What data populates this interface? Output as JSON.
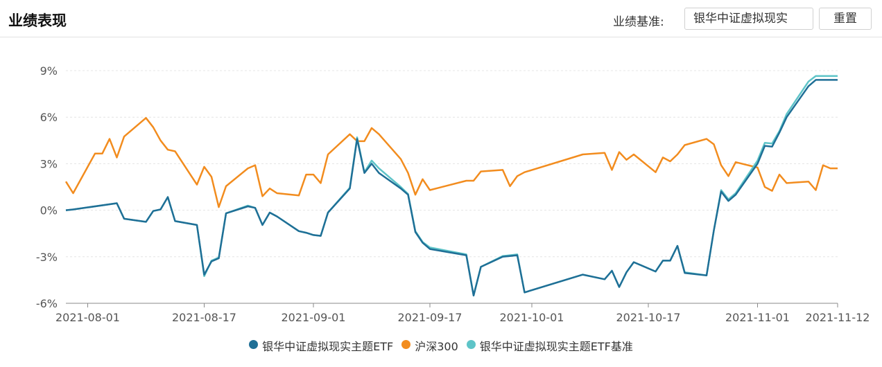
{
  "header": {
    "title": "业绩表现",
    "benchmark_label": "业绩基准:",
    "benchmark_selected": "银华中证虚拟现实",
    "reset_label": "重置"
  },
  "chart_data": {
    "type": "line",
    "title": "",
    "xlabel": "",
    "ylabel": "",
    "x_ticks": [
      "2021-08-01",
      "2021-08-17",
      "2021-09-01",
      "2021-09-17",
      "2021-10-01",
      "2021-10-17",
      "2021-11-01",
      "2021-11-12"
    ],
    "y_ticks": [
      "9%",
      "6%",
      "3%",
      "0%",
      "-3%",
      "-6%"
    ],
    "y_tick_values": [
      9,
      6,
      3,
      0,
      -3,
      -6
    ],
    "ylim": [
      -6,
      9
    ],
    "xlim": [
      "2021-07-29",
      "2021-11-12"
    ],
    "grid": "horizontal-dashed",
    "legend_position": "bottom",
    "series": [
      {
        "name": "银华中证虚拟现实主题ETF",
        "color": "#1f6f96",
        "x": [
          "2021-07-29",
          "2021-07-30",
          "2021-08-05",
          "2021-08-06",
          "2021-08-09",
          "2021-08-10",
          "2021-08-11",
          "2021-08-12",
          "2021-08-13",
          "2021-08-16",
          "2021-08-17",
          "2021-08-18",
          "2021-08-19",
          "2021-08-20",
          "2021-08-23",
          "2021-08-24",
          "2021-08-25",
          "2021-08-26",
          "2021-08-27",
          "2021-08-30",
          "2021-08-31",
          "2021-09-01",
          "2021-09-02",
          "2021-09-03",
          "2021-09-06",
          "2021-09-07",
          "2021-09-08",
          "2021-09-09",
          "2021-09-10",
          "2021-09-13",
          "2021-09-14",
          "2021-09-15",
          "2021-09-16",
          "2021-09-17",
          "2021-09-22",
          "2021-09-23",
          "2021-09-24",
          "2021-09-27",
          "2021-09-28",
          "2021-09-29",
          "2021-09-30",
          "2021-10-08",
          "2021-10-11",
          "2021-10-12",
          "2021-10-13",
          "2021-10-14",
          "2021-10-15",
          "2021-10-18",
          "2021-10-19",
          "2021-10-20",
          "2021-10-21",
          "2021-10-22",
          "2021-10-25",
          "2021-10-26",
          "2021-10-27",
          "2021-10-28",
          "2021-10-29",
          "2021-11-01",
          "2021-11-02",
          "2021-11-03",
          "2021-11-04",
          "2021-11-05",
          "2021-11-08",
          "2021-11-09",
          "2021-11-10",
          "2021-11-11",
          "2021-11-12"
        ],
        "values": [
          0.0,
          0.05,
          0.45,
          -0.55,
          -0.75,
          -0.05,
          0.05,
          0.85,
          -0.7,
          -0.95,
          -4.15,
          -3.3,
          -3.1,
          -0.2,
          0.25,
          0.15,
          -0.95,
          -0.15,
          -0.4,
          -1.35,
          -1.45,
          -1.6,
          -1.65,
          -0.15,
          1.4,
          4.6,
          2.4,
          3.0,
          2.4,
          1.4,
          1.0,
          -1.4,
          -2.1,
          -2.5,
          -2.9,
          -5.5,
          -3.65,
          -3.0,
          -2.95,
          -2.9,
          -5.3,
          -4.15,
          -4.45,
          -3.9,
          -4.95,
          -4.0,
          -3.35,
          -3.95,
          -3.25,
          -3.25,
          -2.3,
          -4.05,
          -4.2,
          -1.3,
          1.2,
          0.6,
          1.0,
          3.0,
          4.15,
          4.1,
          5.0,
          6.0,
          8.0,
          8.4,
          8.4,
          8.4,
          8.4
        ]
      },
      {
        "name": "沪深300",
        "color": "#f28c1e",
        "x": [
          "2021-07-29",
          "2021-07-30",
          "2021-08-02",
          "2021-08-03",
          "2021-08-04",
          "2021-08-05",
          "2021-08-06",
          "2021-08-09",
          "2021-08-10",
          "2021-08-11",
          "2021-08-12",
          "2021-08-13",
          "2021-08-16",
          "2021-08-17",
          "2021-08-18",
          "2021-08-19",
          "2021-08-20",
          "2021-08-23",
          "2021-08-24",
          "2021-08-25",
          "2021-08-26",
          "2021-08-27",
          "2021-08-30",
          "2021-08-31",
          "2021-09-01",
          "2021-09-02",
          "2021-09-03",
          "2021-09-06",
          "2021-09-07",
          "2021-09-08",
          "2021-09-09",
          "2021-09-10",
          "2021-09-13",
          "2021-09-14",
          "2021-09-15",
          "2021-09-16",
          "2021-09-17",
          "2021-09-22",
          "2021-09-23",
          "2021-09-24",
          "2021-09-27",
          "2021-09-28",
          "2021-09-29",
          "2021-09-30",
          "2021-10-08",
          "2021-10-11",
          "2021-10-12",
          "2021-10-13",
          "2021-10-14",
          "2021-10-15",
          "2021-10-18",
          "2021-10-19",
          "2021-10-20",
          "2021-10-21",
          "2021-10-22",
          "2021-10-25",
          "2021-10-26",
          "2021-10-27",
          "2021-10-28",
          "2021-10-29",
          "2021-11-01",
          "2021-11-02",
          "2021-11-03",
          "2021-11-04",
          "2021-11-05",
          "2021-11-08",
          "2021-11-09",
          "2021-11-10",
          "2021-11-11",
          "2021-11-12"
        ],
        "values": [
          1.85,
          1.1,
          3.65,
          3.65,
          4.6,
          3.4,
          4.75,
          5.95,
          5.35,
          4.5,
          3.9,
          3.8,
          1.65,
          2.8,
          2.15,
          0.2,
          1.55,
          2.7,
          2.9,
          0.9,
          1.4,
          1.1,
          0.95,
          2.3,
          2.3,
          1.75,
          3.6,
          4.9,
          4.45,
          4.45,
          5.3,
          4.9,
          3.3,
          2.4,
          1.0,
          2.0,
          1.3,
          1.9,
          1.9,
          2.5,
          2.6,
          1.55,
          2.2,
          2.45,
          3.6,
          3.7,
          2.6,
          3.75,
          3.25,
          3.6,
          2.45,
          3.4,
          3.15,
          3.6,
          4.2,
          4.6,
          4.25,
          2.9,
          2.2,
          3.1,
          2.75,
          1.5,
          1.25,
          2.3,
          1.75,
          1.85,
          1.3,
          2.9,
          2.7,
          2.7
        ]
      },
      {
        "name": "银华中证虚拟现实主题ETF基准",
        "color": "#5ec4c8",
        "x": [
          "2021-07-29",
          "2021-07-30",
          "2021-08-05",
          "2021-08-06",
          "2021-08-09",
          "2021-08-10",
          "2021-08-11",
          "2021-08-12",
          "2021-08-13",
          "2021-08-16",
          "2021-08-17",
          "2021-08-18",
          "2021-08-19",
          "2021-08-20",
          "2021-08-23",
          "2021-08-24",
          "2021-08-25",
          "2021-08-26",
          "2021-08-27",
          "2021-08-30",
          "2021-08-31",
          "2021-09-01",
          "2021-09-02",
          "2021-09-03",
          "2021-09-06",
          "2021-09-07",
          "2021-09-08",
          "2021-09-09",
          "2021-09-10",
          "2021-09-13",
          "2021-09-14",
          "2021-09-15",
          "2021-09-16",
          "2021-09-17",
          "2021-09-22",
          "2021-09-23",
          "2021-09-24",
          "2021-09-27",
          "2021-09-28",
          "2021-09-29",
          "2021-09-30",
          "2021-10-08",
          "2021-10-11",
          "2021-10-12",
          "2021-10-13",
          "2021-10-14",
          "2021-10-15",
          "2021-10-18",
          "2021-10-19",
          "2021-10-20",
          "2021-10-21",
          "2021-10-22",
          "2021-10-25",
          "2021-10-26",
          "2021-10-27",
          "2021-10-28",
          "2021-10-29",
          "2021-11-01",
          "2021-11-02",
          "2021-11-03",
          "2021-11-04",
          "2021-11-05",
          "2021-11-08",
          "2021-11-09",
          "2021-11-10",
          "2021-11-11",
          "2021-11-12"
        ],
        "values": [
          0.0,
          0.05,
          0.45,
          -0.55,
          -0.75,
          -0.05,
          0.05,
          0.85,
          -0.7,
          -0.95,
          -4.25,
          -3.25,
          -3.05,
          -0.2,
          0.3,
          0.15,
          -0.95,
          -0.15,
          -0.4,
          -1.35,
          -1.45,
          -1.6,
          -1.65,
          -0.15,
          1.45,
          4.7,
          2.45,
          3.2,
          2.7,
          1.5,
          1.05,
          -1.35,
          -2.05,
          -2.4,
          -2.85,
          -5.5,
          -3.65,
          -2.95,
          -2.9,
          -2.85,
          -5.3,
          -4.15,
          -4.45,
          -3.9,
          -4.95,
          -4.0,
          -3.35,
          -3.95,
          -3.25,
          -3.25,
          -2.3,
          -4.0,
          -4.2,
          -1.3,
          1.3,
          0.7,
          1.1,
          3.2,
          4.35,
          4.3,
          5.1,
          6.2,
          8.3,
          8.65,
          8.65,
          8.65,
          8.65
        ]
      }
    ]
  }
}
